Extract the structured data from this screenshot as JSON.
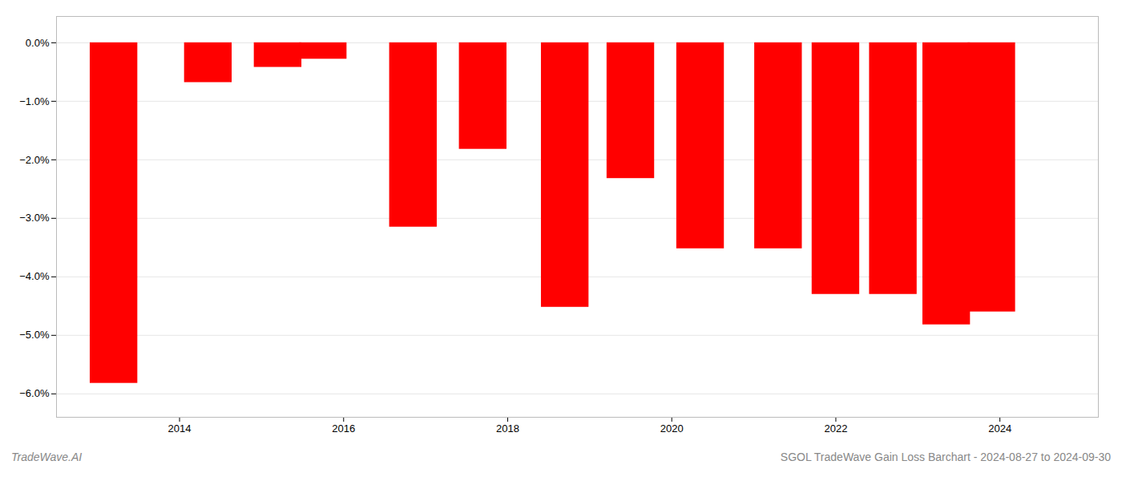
{
  "chart_data": {
    "type": "bar",
    "x": [
      2013.2,
      2014.35,
      2015.2,
      2015.75,
      2016.85,
      2017.7,
      2018.7,
      2019.5,
      2020.35,
      2021.3,
      2022.0,
      2022.7,
      2023.35,
      2023.9
    ],
    "values": [
      -5.82,
      -0.68,
      -0.42,
      -0.28,
      -3.15,
      -1.82,
      -4.52,
      -2.32,
      -3.52,
      -3.52,
      -4.3,
      -4.3,
      -4.82,
      -4.6
    ],
    "color": "#ff0000",
    "xlim": [
      2012.5,
      2025.2
    ],
    "ylim": [
      -6.4,
      0.45
    ],
    "xticks": [
      2014,
      2016,
      2018,
      2020,
      2022,
      2024
    ],
    "yticks": [
      {
        "value": 0.0,
        "label": "0.0%"
      },
      {
        "value": -1.0,
        "label": "−1.0%"
      },
      {
        "value": -2.0,
        "label": "−2.0%"
      },
      {
        "value": -3.0,
        "label": "−3.0%"
      },
      {
        "value": -4.0,
        "label": "−4.0%"
      },
      {
        "value": -5.0,
        "label": "−5.0%"
      },
      {
        "value": -6.0,
        "label": "−6.0%"
      }
    ],
    "grid": "y",
    "annotations": [
      "TradeWave.AI",
      "SGOL TradeWave Gain Loss Barchart - 2024-08-27 to 2024-09-30"
    ]
  }
}
